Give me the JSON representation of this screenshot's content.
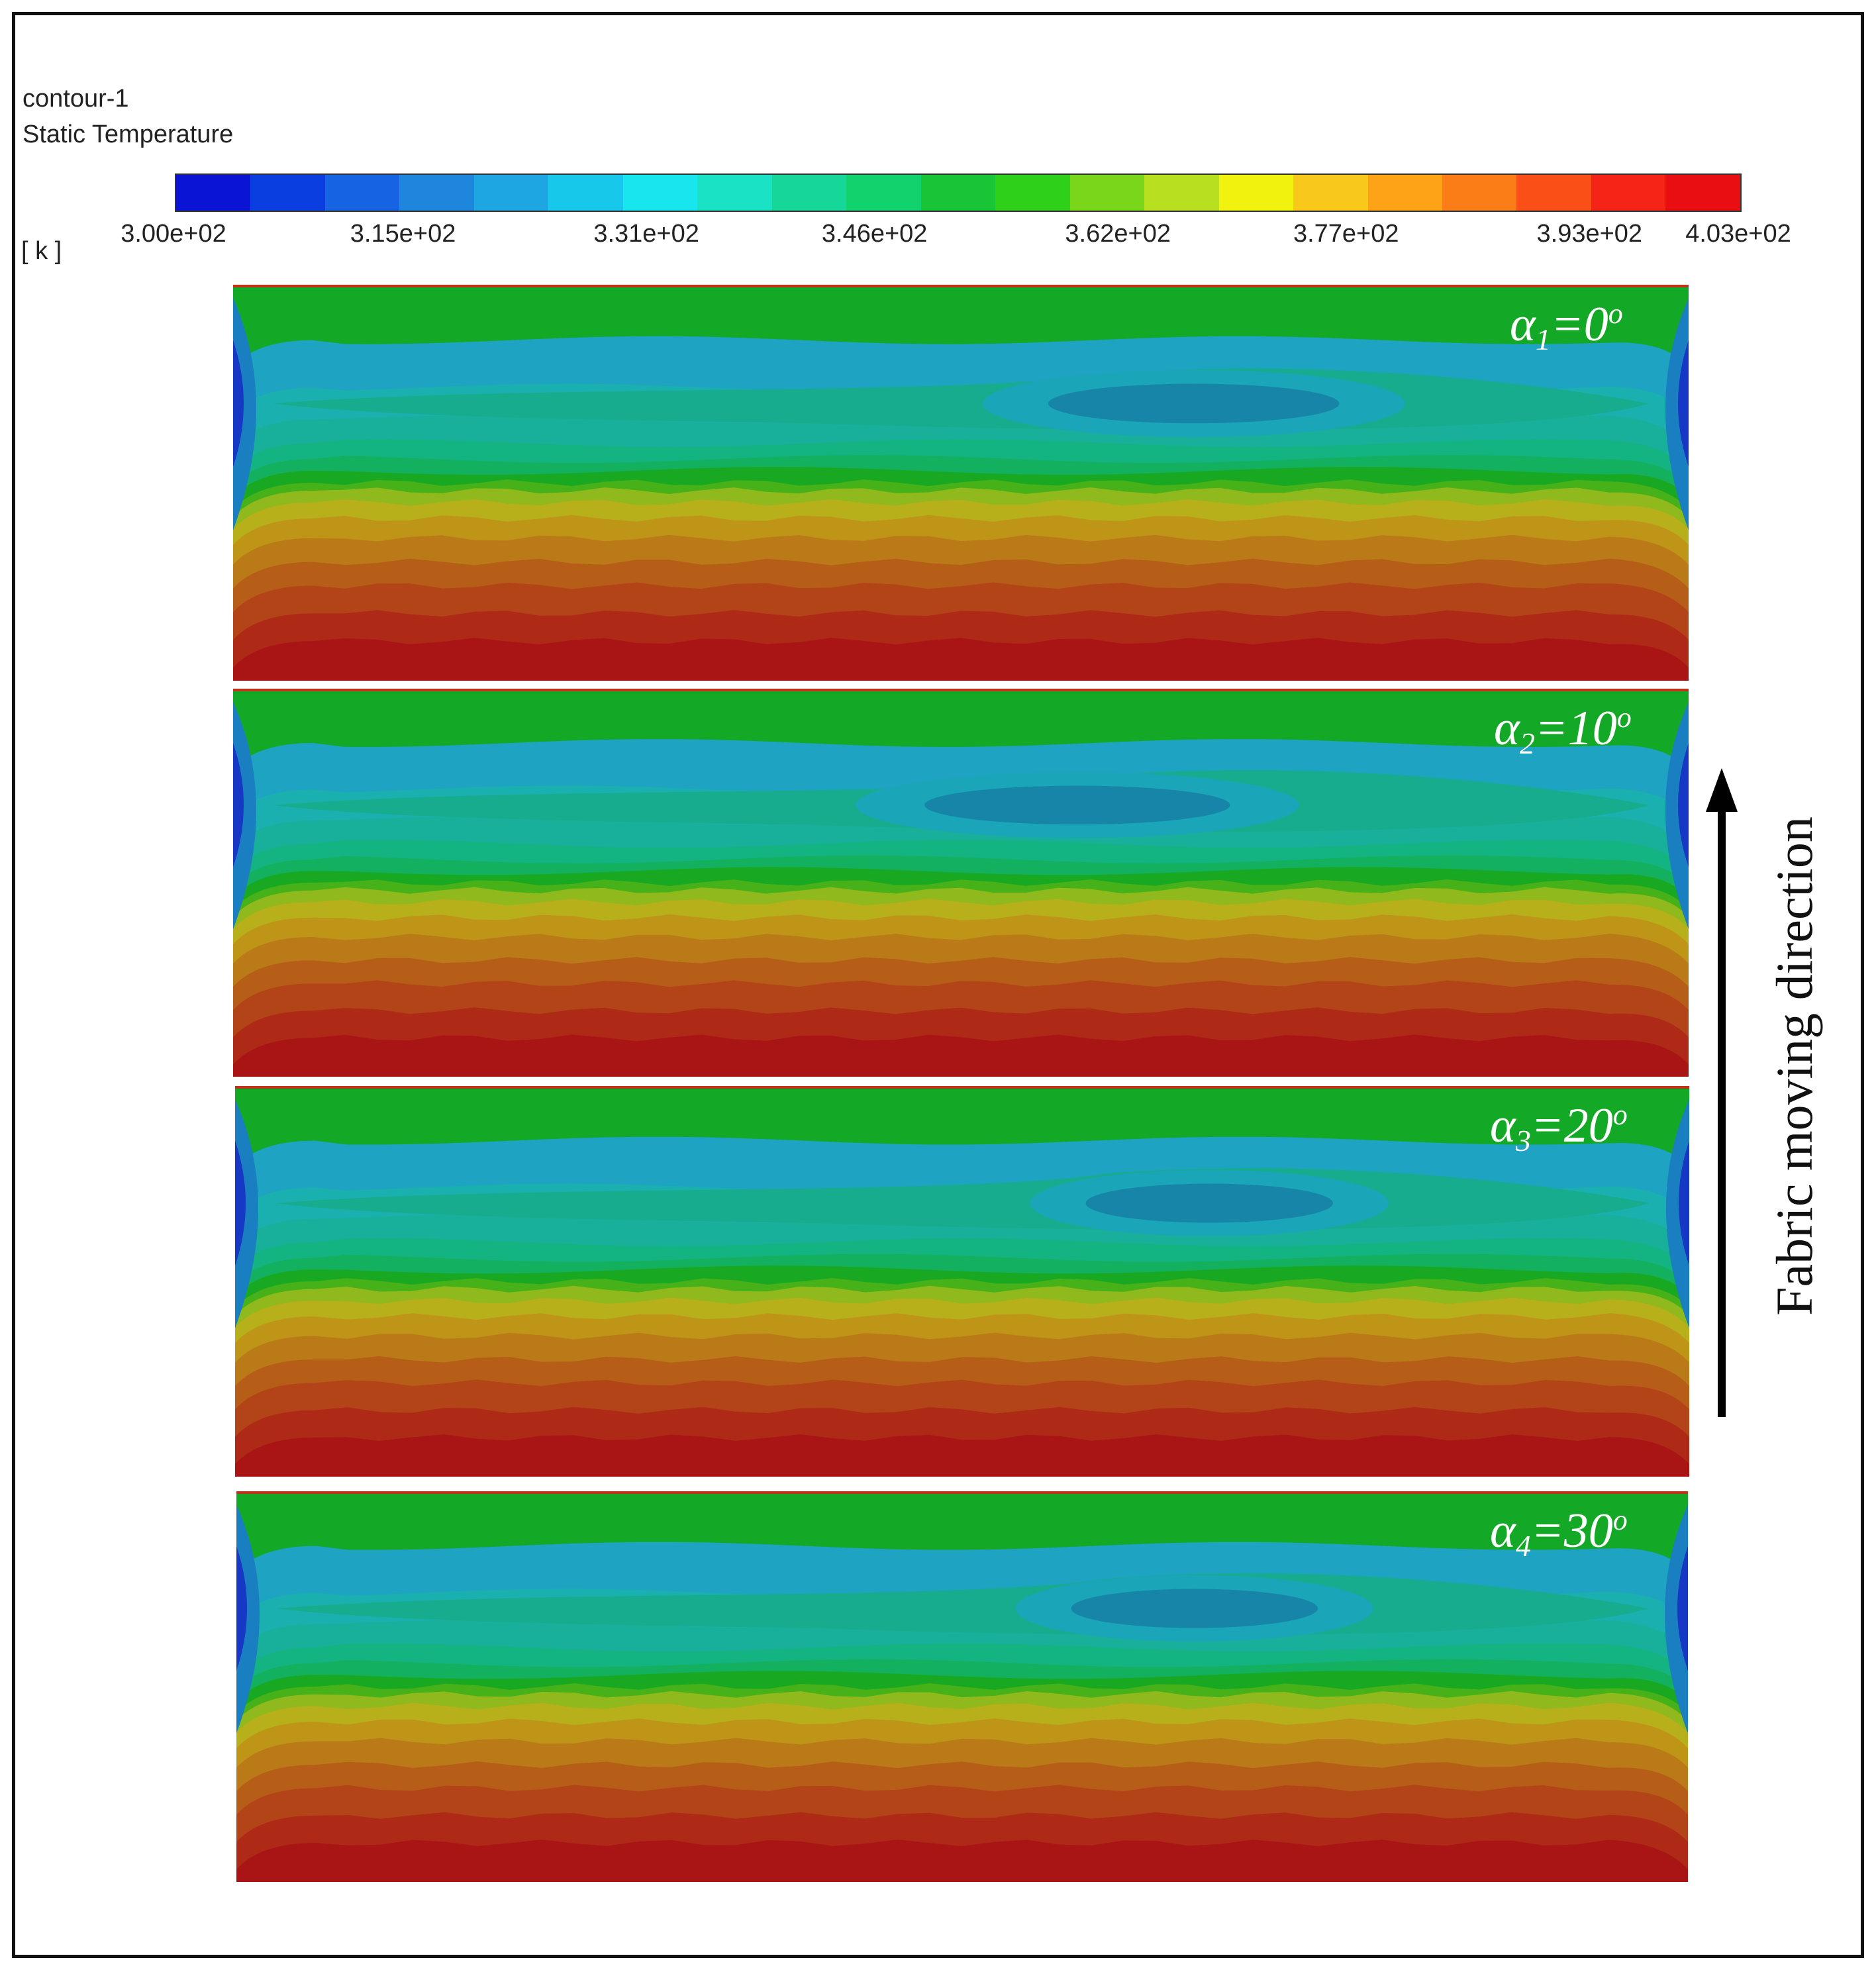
{
  "legend": {
    "name": "contour-1",
    "variable": "Static Temperature",
    "unit": "[ k ]",
    "tick_labels": [
      "3.00e+02",
      "3.15e+02",
      "3.31e+02",
      "3.46e+02",
      "3.62e+02",
      "3.77e+02",
      "3.93e+02",
      "4.03e+02"
    ]
  },
  "direction_label": "Fabric moving direction",
  "cases": [
    {
      "symbol": "α",
      "index": "1",
      "op": "=0",
      "deg": "o"
    },
    {
      "symbol": "α",
      "index": "2",
      "op": "=10",
      "deg": "o"
    },
    {
      "symbol": "α",
      "index": "3",
      "op": "=20",
      "deg": "o"
    },
    {
      "symbol": "α",
      "index": "4",
      "op": "=30",
      "deg": "o"
    }
  ],
  "chart_data": {
    "type": "heatmap",
    "title": "Static Temperature",
    "units": "k",
    "colorbar": {
      "min": 300,
      "max": 403,
      "tick_values": [
        300,
        315,
        331,
        346,
        362,
        377,
        393,
        403
      ],
      "levels": 20,
      "colors": [
        "#0a14d4",
        "#0a3ee0",
        "#1764e3",
        "#1f86de",
        "#1ea6e2",
        "#18c8ea",
        "#17e6ef",
        "#19e3c4",
        "#17d69a",
        "#12d26e",
        "#1ac437",
        "#2fd01a",
        "#7ad61a",
        "#b9e020",
        "#f2f20f",
        "#f8c81a",
        "#fea316",
        "#fb7d18",
        "#fa5018",
        "#f62416",
        "#e80e12"
      ]
    },
    "panels": [
      {
        "alpha_deg": 0,
        "cold_core_center_frac": 0.66,
        "cold_core_width_frac": 0.2
      },
      {
        "alpha_deg": 10,
        "cold_core_center_frac": 0.58,
        "cold_core_width_frac": 0.21
      },
      {
        "alpha_deg": 20,
        "cold_core_center_frac": 0.67,
        "cold_core_width_frac": 0.17
      },
      {
        "alpha_deg": 30,
        "cold_core_center_frac": 0.66,
        "cold_core_width_frac": 0.17
      }
    ]
  }
}
